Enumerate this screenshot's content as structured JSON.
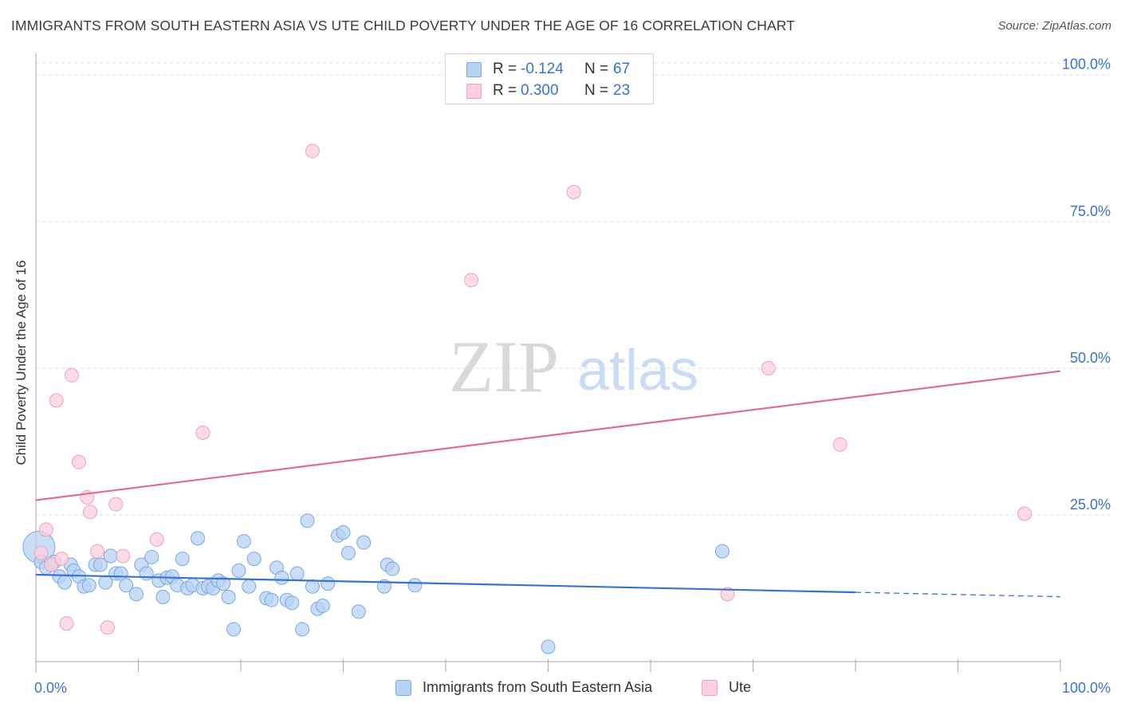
{
  "title": "IMMIGRANTS FROM SOUTH EASTERN ASIA VS UTE CHILD POVERTY UNDER THE AGE OF 16 CORRELATION CHART",
  "source": "Source: ZipAtlas.com",
  "colors": {
    "blue": "#3a72d0",
    "blue_fill": "#b8d2f4",
    "blue_stroke": "#7aa8e6",
    "pink": "#e06b94",
    "pink_fill": "#fbcfdd",
    "pink_stroke": "#f0a0bc",
    "grid": "#dddddd",
    "axis_text": "#3a72d0"
  },
  "legend": {
    "r_label": "R =",
    "n_label": "N =",
    "series": [
      {
        "r": "-0.124",
        "n": "67"
      },
      {
        "r": "0.300",
        "n": "23"
      }
    ]
  },
  "watermark": {
    "zip": "ZIP",
    "atlas": "atlas"
  },
  "chart_data": {
    "type": "scatter",
    "title": "IMMIGRANTS FROM SOUTH EASTERN ASIA VS UTE CHILD POVERTY UNDER THE AGE OF 16 CORRELATION CHART",
    "xlabel": "",
    "ylabel": "Child Poverty Under the Age of 16",
    "xlim": [
      0,
      100
    ],
    "ylim": [
      0,
      102
    ],
    "x_tick_labels": [
      "0.0%",
      "100.0%"
    ],
    "y_ticks": [
      25,
      50,
      75,
      100
    ],
    "y_tick_labels": [
      "25.0%",
      "50.0%",
      "75.0%",
      "100.0%"
    ],
    "series": [
      {
        "name": "Immigrants from South Eastern Asia",
        "color": "#3a72d0",
        "trend": {
          "x0": 0,
          "y0": 14.8,
          "x1": 80,
          "y1": 11.8,
          "dash_to": 100
        },
        "points": [
          [
            0.3,
            19.5
          ],
          [
            0.5,
            17.0
          ],
          [
            1.0,
            16.0
          ],
          [
            1.5,
            16.5
          ],
          [
            1.8,
            17.0
          ],
          [
            2.3,
            14.5
          ],
          [
            2.8,
            13.5
          ],
          [
            3.4,
            16.5
          ],
          [
            3.7,
            15.5
          ],
          [
            4.2,
            14.5
          ],
          [
            4.7,
            12.8
          ],
          [
            5.2,
            13.0
          ],
          [
            5.8,
            16.5
          ],
          [
            6.3,
            16.5
          ],
          [
            6.8,
            13.5
          ],
          [
            7.3,
            18.0
          ],
          [
            7.8,
            15.0
          ],
          [
            8.3,
            15.0
          ],
          [
            8.8,
            13.0
          ],
          [
            9.8,
            11.5
          ],
          [
            10.3,
            16.5
          ],
          [
            10.8,
            15.0
          ],
          [
            11.3,
            17.8
          ],
          [
            12.0,
            13.8
          ],
          [
            12.4,
            11.0
          ],
          [
            12.8,
            14.3
          ],
          [
            13.3,
            14.5
          ],
          [
            13.8,
            13.0
          ],
          [
            14.3,
            17.5
          ],
          [
            14.8,
            12.5
          ],
          [
            15.3,
            13.0
          ],
          [
            15.8,
            21.0
          ],
          [
            16.3,
            12.5
          ],
          [
            16.8,
            12.8
          ],
          [
            17.3,
            12.5
          ],
          [
            17.8,
            13.8
          ],
          [
            18.3,
            13.3
          ],
          [
            18.8,
            11.0
          ],
          [
            19.3,
            5.5
          ],
          [
            19.8,
            15.5
          ],
          [
            20.3,
            20.5
          ],
          [
            20.8,
            12.8
          ],
          [
            21.3,
            17.5
          ],
          [
            22.5,
            10.8
          ],
          [
            23.0,
            10.5
          ],
          [
            23.5,
            16.0
          ],
          [
            24.0,
            14.3
          ],
          [
            24.5,
            10.5
          ],
          [
            25.0,
            10.0
          ],
          [
            25.5,
            15.0
          ],
          [
            26.0,
            5.5
          ],
          [
            26.5,
            24.0
          ],
          [
            27.0,
            12.8
          ],
          [
            27.5,
            9.0
          ],
          [
            28.0,
            9.5
          ],
          [
            28.5,
            13.3
          ],
          [
            29.5,
            21.5
          ],
          [
            30.0,
            22.0
          ],
          [
            30.5,
            18.5
          ],
          [
            31.5,
            8.5
          ],
          [
            32.0,
            20.3
          ],
          [
            34.0,
            12.8
          ],
          [
            34.3,
            16.5
          ],
          [
            34.8,
            15.8
          ],
          [
            37.0,
            13.0
          ],
          [
            50.0,
            2.5
          ],
          [
            67.0,
            18.8
          ]
        ]
      },
      {
        "name": "Ute",
        "color": "#e06b94",
        "trend": {
          "x0": 0,
          "y0": 27.5,
          "x1": 100,
          "y1": 49.5
        },
        "points": [
          [
            0.5,
            18.5
          ],
          [
            1.0,
            22.5
          ],
          [
            1.5,
            16.5
          ],
          [
            2.0,
            44.5
          ],
          [
            2.5,
            17.5
          ],
          [
            3.0,
            6.5
          ],
          [
            3.5,
            48.8
          ],
          [
            4.2,
            34.0
          ],
          [
            5.0,
            28.0
          ],
          [
            5.3,
            25.5
          ],
          [
            6.0,
            18.8
          ],
          [
            7.0,
            5.8
          ],
          [
            7.8,
            26.8
          ],
          [
            8.5,
            18.0
          ],
          [
            11.8,
            20.8
          ],
          [
            16.3,
            39.0
          ],
          [
            27.0,
            87.0
          ],
          [
            42.5,
            65.0
          ],
          [
            52.5,
            80.0
          ],
          [
            67.5,
            11.5
          ],
          [
            71.5,
            50.0
          ],
          [
            78.5,
            37.0
          ],
          [
            96.5,
            25.2
          ]
        ]
      }
    ]
  }
}
